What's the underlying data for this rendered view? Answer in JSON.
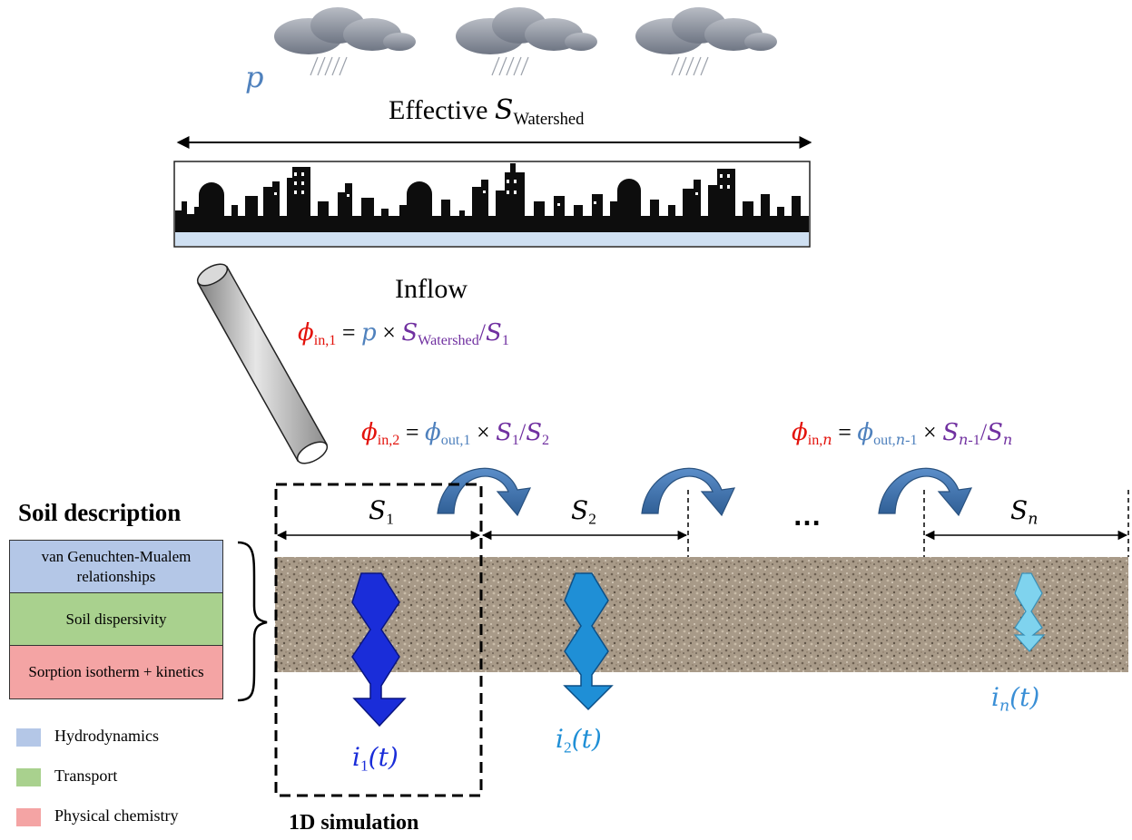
{
  "colors": {
    "rain": "#4f81bd",
    "inflow": "#e3120b",
    "outflow": "#4f81bd",
    "surface": "#7030a0",
    "i1": "#1a2dd9",
    "i2": "#1f8fd6",
    "in": "#7fd3ee",
    "hydrodynamics": "#b4c7e7",
    "transport": "#a9d18e",
    "physical_chemistry": "#f4a4a4"
  },
  "rain_symbol": "p",
  "watershed_label": {
    "prefix": "Effective ",
    "symbol": "S",
    "subscript": "Watershed"
  },
  "inflow_label": "Inflow",
  "formulas": {
    "inflow_1": {
      "lhs_symbol": "ϕ",
      "lhs_sub": "in,1",
      "eq": " = ",
      "rain": "p",
      "times": " × ",
      "s_symbol": "S",
      "s_sub": "Watershed",
      "slash": "/",
      "den_symbol": "S",
      "den_sub": "1"
    },
    "inflow_2": {
      "lhs_symbol": "ϕ",
      "lhs_sub": "in,2",
      "eq": " = ",
      "out_symbol": "ϕ",
      "out_sub": "out,1",
      "times": " × ",
      "num_symbol": "S",
      "num_sub": "1",
      "slash": "/",
      "den_symbol": "S",
      "den_sub": "2"
    },
    "inflow_n": {
      "lhs_symbol": "ϕ",
      "lhs_sub_a": "in,",
      "lhs_sub_b": "n",
      "eq": " = ",
      "out_symbol": "ϕ",
      "out_sub_a": "out,",
      "out_sub_b": "n",
      "out_sub_c": "-1",
      "times": " × ",
      "num_symbol": "S",
      "num_sub_a": "n",
      "num_sub_b": "-1",
      "slash": "/",
      "den_symbol": "S",
      "den_sub": "n"
    }
  },
  "segments": [
    {
      "symbol": "S",
      "sub": "1"
    },
    {
      "symbol": "S",
      "sub": "2"
    },
    {
      "symbol": "S",
      "sub": "n"
    }
  ],
  "ellipsis": "…",
  "infiltration": [
    {
      "symbol": "i",
      "sub": "1",
      "arg": "(t)"
    },
    {
      "symbol": "i",
      "sub": "2",
      "arg": "(t)"
    },
    {
      "symbol": "i",
      "sub": "n",
      "arg": "(t)"
    }
  ],
  "soil_description": {
    "title": "Soil description",
    "boxes": [
      "van Genuchten-Mualem relationships",
      "Soil dispersivity",
      "Sorption isotherm + kinetics"
    ]
  },
  "legend": [
    {
      "label": "Hydrodynamics",
      "color": "#b4c7e7"
    },
    {
      "label": "Transport",
      "color": "#a9d18e"
    },
    {
      "label": "Physical chemistry",
      "color": "#f4a4a4"
    }
  ],
  "simulation_label": "1D simulation"
}
